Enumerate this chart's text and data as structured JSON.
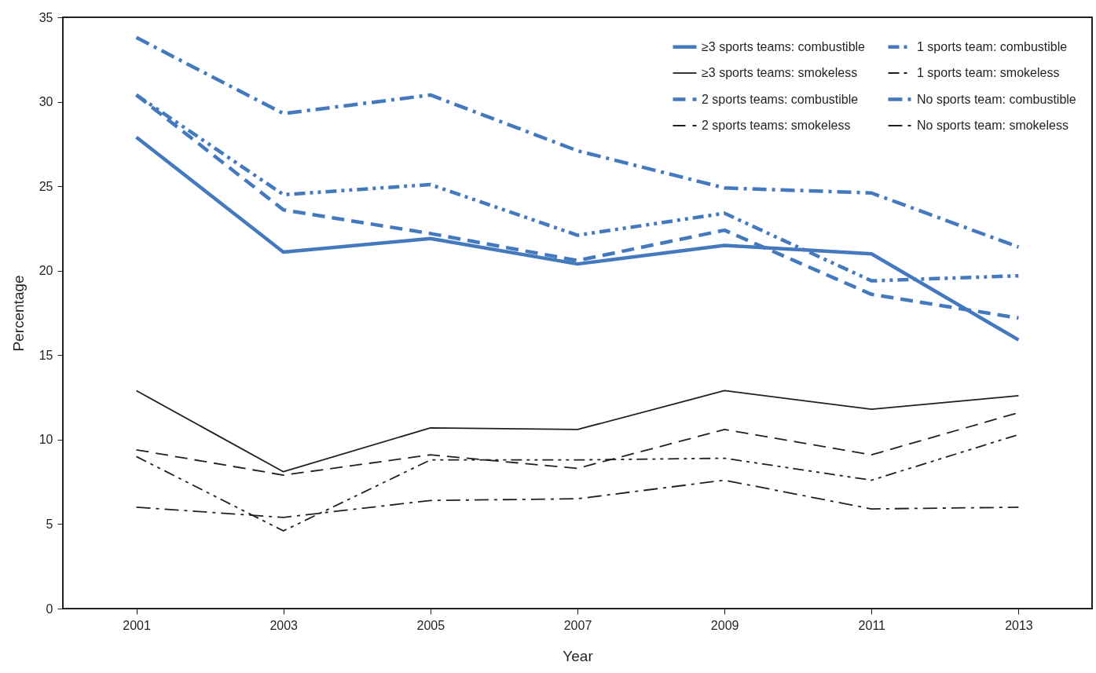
{
  "chart_data": {
    "type": "line",
    "xlabel": "Year",
    "ylabel": "Percentage",
    "x": [
      2001,
      2003,
      2005,
      2007,
      2009,
      2011,
      2013
    ],
    "xlim": [
      2000,
      2014
    ],
    "xticks": [
      2001,
      2003,
      2005,
      2007,
      2009,
      2011,
      2013
    ],
    "ylim": [
      0,
      35
    ],
    "yticks": [
      0,
      5,
      10,
      15,
      20,
      25,
      30,
      35
    ],
    "grid": false,
    "legend": "top right",
    "marker": "none",
    "series": [
      {
        "name": "≥3 sports teams: combustible",
        "color": "#4479be",
        "line_style": "solid",
        "values": [
          27.9,
          21.1,
          21.9,
          20.4,
          21.5,
          21.0,
          15.9
        ]
      },
      {
        "name": "≥3 sports teams: smokeless",
        "color": "#231f20",
        "line_style": "solid",
        "values": [
          12.9,
          8.1,
          10.7,
          10.6,
          12.9,
          11.8,
          12.6
        ]
      },
      {
        "name": "2 sports teams: combustible",
        "color": "#4479be",
        "line_style": "dashed",
        "values": [
          30.4,
          23.6,
          22.2,
          20.6,
          22.4,
          18.6,
          17.2
        ]
      },
      {
        "name": "2 sports teams: smokeless",
        "color": "#231f20",
        "line_style": "dashed",
        "values": [
          9.4,
          7.9,
          9.1,
          8.3,
          10.6,
          9.1,
          11.6
        ]
      },
      {
        "name": "1 sports team: combustible",
        "color": "#4479be",
        "line_style": "dash-dot-dot",
        "values": [
          30.4,
          24.5,
          25.1,
          22.1,
          23.4,
          19.4,
          19.7
        ]
      },
      {
        "name": "1 sports team: smokeless",
        "color": "#231f20",
        "line_style": "dash-dot-dot",
        "values": [
          9.0,
          4.6,
          8.8,
          8.8,
          8.9,
          7.6,
          10.3
        ]
      },
      {
        "name": "No sports team: combustible",
        "color": "#4479be",
        "line_style": "dash-dot",
        "values": [
          33.8,
          29.3,
          30.4,
          27.1,
          24.9,
          24.6,
          21.4
        ]
      },
      {
        "name": "No sports team: smokeless",
        "color": "#231f20",
        "line_style": "dash-dot",
        "values": [
          6.0,
          5.4,
          6.4,
          6.5,
          7.6,
          5.9,
          6.0
        ]
      }
    ]
  }
}
